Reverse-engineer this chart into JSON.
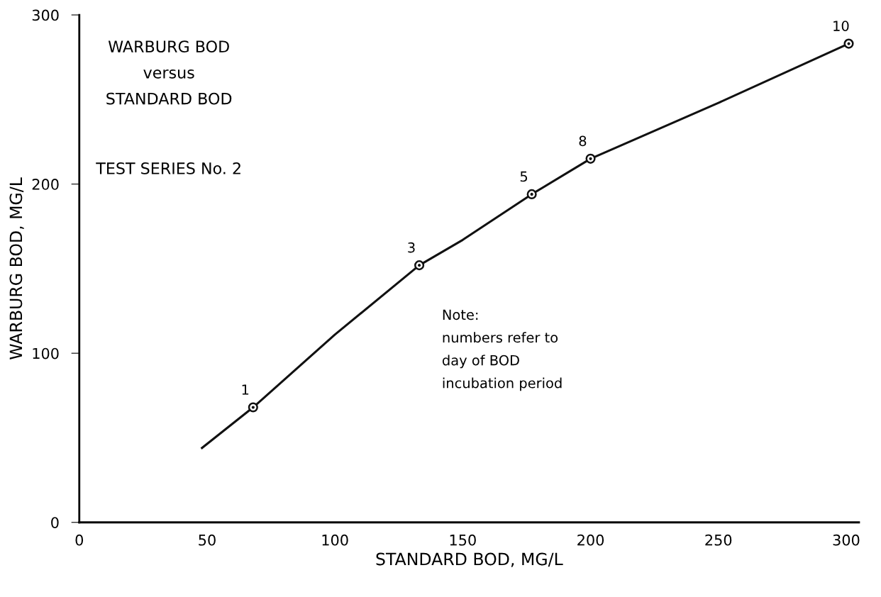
{
  "chart_data": {
    "type": "line",
    "title": "WARBURG BOD\nversus\nSTANDARD BOD",
    "subtitle": "TEST SERIES No. 2",
    "xlabel": "STANDARD BOD, MG/L",
    "ylabel": "WARBURG BOD, MG/L",
    "xlim": [
      0,
      305
    ],
    "ylim": [
      0,
      300
    ],
    "xticks": [
      0,
      50,
      100,
      150,
      200,
      250,
      300
    ],
    "yticks": [
      0,
      100,
      200,
      300
    ],
    "grid": false,
    "legend": false,
    "line_style": "solid",
    "series": [
      {
        "color": "#111111",
        "x": [
          48,
          68,
          100,
          133,
          150,
          177,
          200,
          250,
          301
        ],
        "values": [
          44,
          68,
          111,
          152,
          167,
          194,
          215,
          248,
          283
        ]
      },
      {
        "type": "scatter",
        "color": "#111111",
        "marker": "circle",
        "x": [
          68,
          133,
          177,
          200,
          301
        ],
        "values": [
          68,
          152,
          194,
          215,
          283
        ]
      }
    ],
    "annotations": [
      {
        "text": "1",
        "x": 68,
        "y": 68
      },
      {
        "text": "3",
        "x": 133,
        "y": 152
      },
      {
        "text": "5",
        "x": 177,
        "y": 194
      },
      {
        "text": "8",
        "x": 200,
        "y": 215
      },
      {
        "text": "10",
        "x": 301,
        "y": 283
      },
      "Note:\nnumbers refer to\nday of BOD\nincubation period"
    ]
  }
}
